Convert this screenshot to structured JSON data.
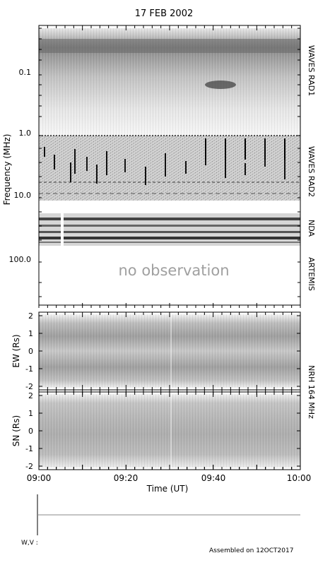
{
  "title": "17 FEB 2002",
  "footer": {
    "wv_label": "W,V :",
    "assembled": "Assembled on 12OCT2017"
  },
  "chart_data": [
    {
      "type": "heatmap",
      "name": "radio-spectrogram",
      "ylabel": "Frequency (MHz)",
      "y_ticks": [
        "0.1",
        "1.0",
        "10.0",
        "100.0"
      ],
      "instruments": [
        "WAVES RAD1",
        "WAVES RAD2",
        "NDA",
        "ARTEMIS"
      ],
      "no_observation_text": "no observation"
    },
    {
      "type": "heatmap",
      "name": "nrh-ew",
      "ylabel": "EW (Rs)",
      "ylim": [
        -2.2,
        2.2
      ],
      "y_ticks": [
        "2",
        "1",
        "0",
        "-1",
        "-2"
      ]
    },
    {
      "type": "heatmap",
      "name": "nrh-sn",
      "ylabel": "SN (Rs)",
      "ylim": [
        -2.2,
        2.2
      ],
      "y_ticks": [
        "2",
        "1",
        "0",
        "-1",
        "-2"
      ]
    }
  ],
  "nrh_label": "NRH 164 MHz",
  "x_axis": {
    "label": "Time (UT)",
    "ticks": [
      "09:00",
      "09:20",
      "09:40",
      "10:00"
    ]
  }
}
